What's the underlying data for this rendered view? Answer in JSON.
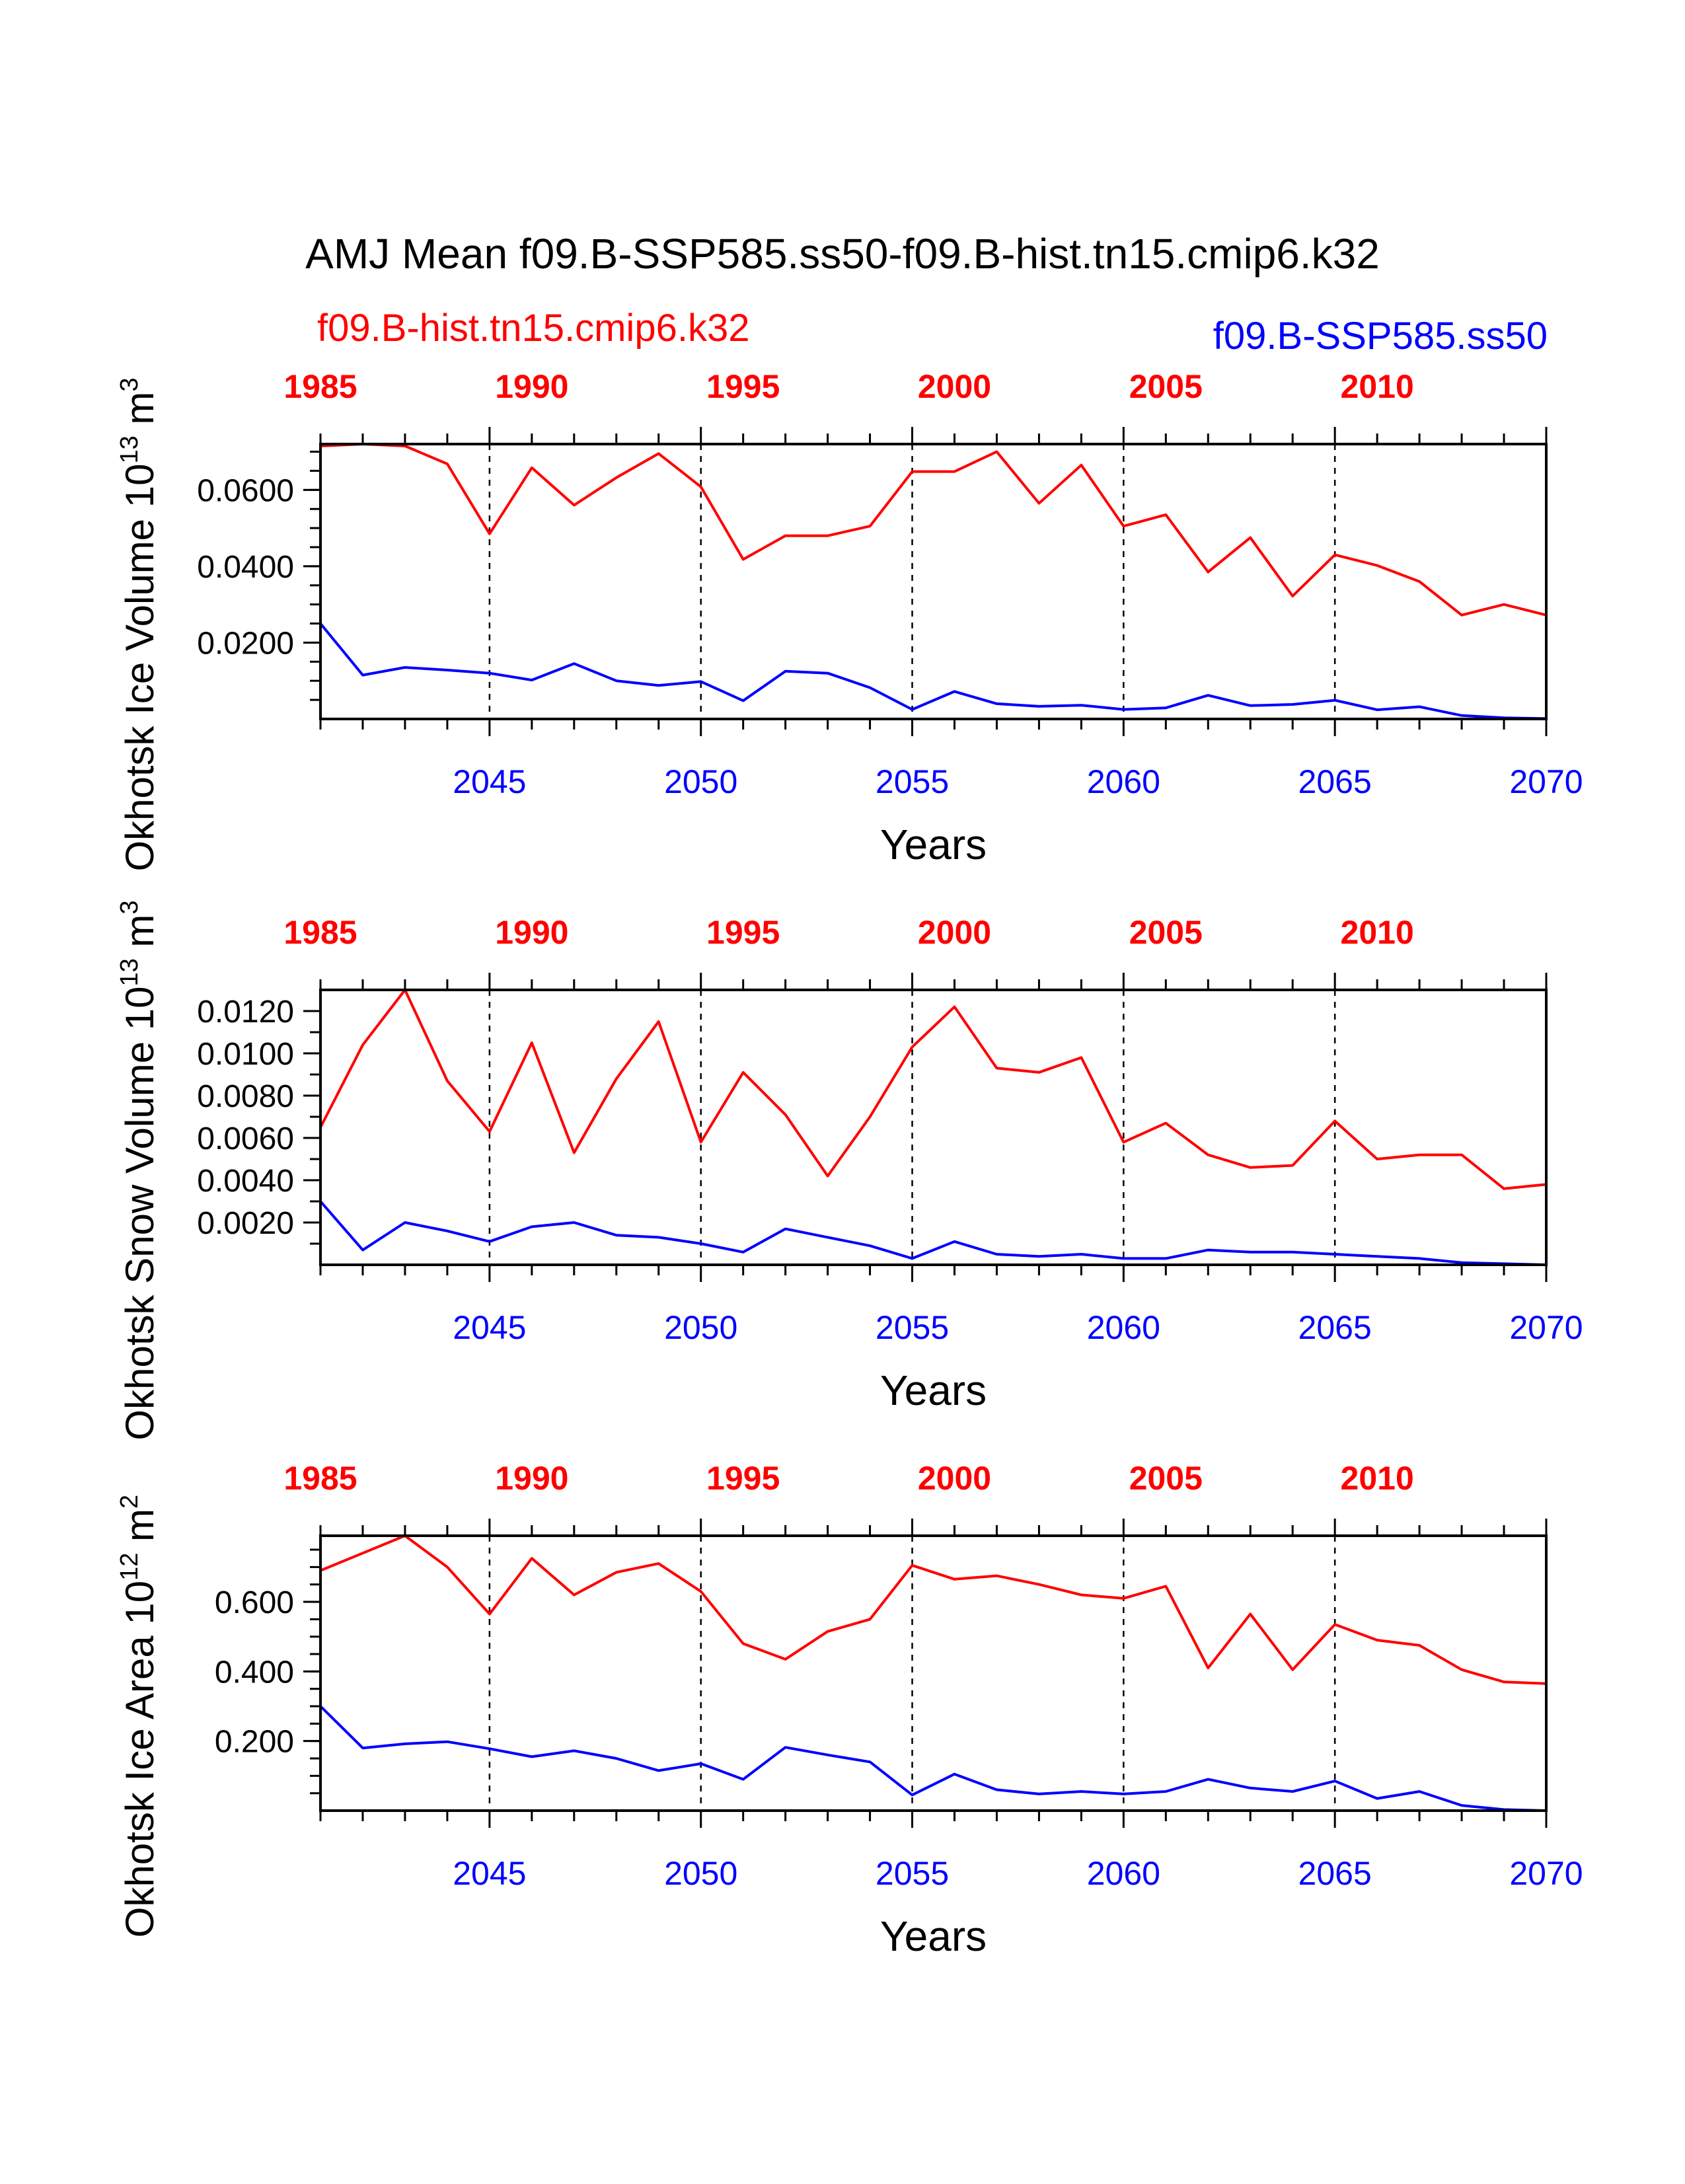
{
  "figure": {
    "title": "AMJ Mean f09.B-SSP585.ss50-f09.B-hist.tn15.cmip6.k32",
    "legend_left": "f09.B-hist.tn15.cmip6.k32",
    "legend_right": "f09.B-SSP585.ss50"
  },
  "colors": {
    "hist": "#ff0000",
    "ssp": "#0000ff",
    "axis": "#000000"
  },
  "chart_data": [
    {
      "type": "line",
      "ylabel_main": "Okhotsk Ice Volume 10",
      "ylabel_exp": "13",
      "ylabel_unit": " m",
      "ylabel_unit_exp": "3",
      "xlabel": "Years",
      "ylim": [
        0,
        0.072
      ],
      "yticks": [
        0.02,
        0.04,
        0.06
      ],
      "ytick_labels": [
        "0.0200",
        "0.0400",
        "0.0600"
      ],
      "yminor_step": 0.005,
      "bottom_ticks": [
        2045,
        2050,
        2055,
        2060,
        2065,
        2070
      ],
      "bottom_tick_labels": [
        "2045",
        "2050",
        "2055",
        "2060",
        "2065",
        "2070"
      ],
      "top_tick_labels": [
        "1985",
        "1990",
        "1995",
        "2000",
        "2005",
        "2010"
      ],
      "xlim": [
        2041,
        2070
      ],
      "series": [
        {
          "key": "hist",
          "x": [
            2041,
            2042,
            2043,
            2044,
            2045,
            2046,
            2047,
            2048,
            2049,
            2050,
            2051,
            2052,
            2053,
            2054,
            2055,
            2056,
            2057,
            2058,
            2059,
            2060,
            2061,
            2062,
            2063,
            2064,
            2065,
            2066,
            2067,
            2068,
            2069,
            2070
          ],
          "y": [
            0.0715,
            0.072,
            0.0715,
            0.0668,
            0.0485,
            0.0658,
            0.056,
            0.0632,
            0.0695,
            0.0608,
            0.0418,
            0.048,
            0.048,
            0.0505,
            0.0648,
            0.0648,
            0.07,
            0.0565,
            0.0665,
            0.0505,
            0.0535,
            0.0385,
            0.0475,
            0.0322,
            0.043,
            0.0402,
            0.036,
            0.0272,
            0.03,
            0.0272
          ]
        },
        {
          "key": "ssp",
          "x": [
            2041,
            2042,
            2043,
            2044,
            2045,
            2046,
            2047,
            2048,
            2049,
            2050,
            2051,
            2052,
            2053,
            2054,
            2055,
            2056,
            2057,
            2058,
            2059,
            2060,
            2061,
            2062,
            2063,
            2064,
            2065,
            2066,
            2067,
            2068,
            2069,
            2070
          ],
          "y": [
            0.025,
            0.0115,
            0.0135,
            0.0128,
            0.012,
            0.0102,
            0.0145,
            0.01,
            0.0088,
            0.0098,
            0.0048,
            0.0125,
            0.012,
            0.0082,
            0.0025,
            0.0072,
            0.004,
            0.0033,
            0.0036,
            0.0025,
            0.0029,
            0.0062,
            0.0035,
            0.0038,
            0.0049,
            0.0024,
            0.0032,
            0.0009,
            0.0003,
            0.0001
          ]
        }
      ]
    },
    {
      "type": "line",
      "ylabel_main": "Okhotsk Snow Volume 10",
      "ylabel_exp": "13",
      "ylabel_unit": " m",
      "ylabel_unit_exp": "3",
      "xlabel": "Years",
      "ylim": [
        0,
        0.013
      ],
      "yticks": [
        0.002,
        0.004,
        0.006,
        0.008,
        0.01,
        0.012
      ],
      "ytick_labels": [
        "0.0020",
        "0.0040",
        "0.0060",
        "0.0080",
        "0.0100",
        "0.0120"
      ],
      "yminor_step": 0.001,
      "bottom_ticks": [
        2045,
        2050,
        2055,
        2060,
        2065,
        2070
      ],
      "bottom_tick_labels": [
        "2045",
        "2050",
        "2055",
        "2060",
        "2065",
        "2070"
      ],
      "top_tick_labels": [
        "1985",
        "1990",
        "1995",
        "2000",
        "2005",
        "2010"
      ],
      "xlim": [
        2041,
        2070
      ],
      "series": [
        {
          "key": "hist",
          "x": [
            2041,
            2042,
            2043,
            2044,
            2045,
            2046,
            2047,
            2048,
            2049,
            2050,
            2051,
            2052,
            2053,
            2054,
            2055,
            2056,
            2057,
            2058,
            2059,
            2060,
            2061,
            2062,
            2063,
            2064,
            2065,
            2066,
            2067,
            2068,
            2069,
            2070
          ],
          "y": [
            0.0065,
            0.0104,
            0.013,
            0.0087,
            0.0063,
            0.0105,
            0.0053,
            0.0088,
            0.0115,
            0.0058,
            0.0091,
            0.0071,
            0.0042,
            0.007,
            0.0103,
            0.0122,
            0.0093,
            0.0091,
            0.0098,
            0.0058,
            0.0067,
            0.0052,
            0.0046,
            0.0047,
            0.0068,
            0.005,
            0.0052,
            0.0052,
            0.0036,
            0.0038
          ]
        },
        {
          "key": "ssp",
          "x": [
            2041,
            2042,
            2043,
            2044,
            2045,
            2046,
            2047,
            2048,
            2049,
            2050,
            2051,
            2052,
            2053,
            2054,
            2055,
            2056,
            2057,
            2058,
            2059,
            2060,
            2061,
            2062,
            2063,
            2064,
            2065,
            2066,
            2067,
            2068,
            2069,
            2070
          ],
          "y": [
            0.003,
            0.0007,
            0.002,
            0.0016,
            0.0011,
            0.0018,
            0.002,
            0.0014,
            0.0013,
            0.001,
            0.0006,
            0.0017,
            0.0013,
            0.0009,
            0.0003,
            0.0011,
            0.0005,
            0.0004,
            0.0005,
            0.0003,
            0.0003,
            0.0007,
            0.0006,
            0.0006,
            0.0005,
            0.0004,
            0.0003,
            0.0001,
            5e-05,
            0.0
          ]
        }
      ]
    },
    {
      "type": "line",
      "ylabel_main": "Okhotsk Ice Area 10",
      "ylabel_exp": "12",
      "ylabel_unit": " m",
      "ylabel_unit_exp": "2",
      "xlabel": "Years",
      "ylim": [
        0,
        0.79
      ],
      "yticks": [
        0.2,
        0.4,
        0.6
      ],
      "ytick_labels": [
        "0.200",
        "0.400",
        "0.600"
      ],
      "yminor_step": 0.05,
      "bottom_ticks": [
        2045,
        2050,
        2055,
        2060,
        2065,
        2070
      ],
      "bottom_tick_labels": [
        "2045",
        "2050",
        "2055",
        "2060",
        "2065",
        "2070"
      ],
      "top_tick_labels": [
        "1985",
        "1990",
        "1995",
        "2000",
        "2005",
        "2010"
      ],
      "xlim": [
        2041,
        2070
      ],
      "series": [
        {
          "key": "hist",
          "x": [
            2041,
            2042,
            2043,
            2044,
            2045,
            2046,
            2047,
            2048,
            2049,
            2050,
            2051,
            2052,
            2053,
            2054,
            2055,
            2056,
            2057,
            2058,
            2059,
            2060,
            2061,
            2062,
            2063,
            2064,
            2065,
            2066,
            2067,
            2068,
            2069,
            2070
          ],
          "y": [
            0.69,
            0.74,
            0.79,
            0.7,
            0.565,
            0.725,
            0.62,
            0.685,
            0.71,
            0.63,
            0.48,
            0.435,
            0.515,
            0.55,
            0.705,
            0.665,
            0.675,
            0.65,
            0.62,
            0.61,
            0.645,
            0.41,
            0.565,
            0.405,
            0.535,
            0.49,
            0.475,
            0.405,
            0.37,
            0.365
          ]
        },
        {
          "key": "ssp",
          "x": [
            2041,
            2042,
            2043,
            2044,
            2045,
            2046,
            2047,
            2048,
            2049,
            2050,
            2051,
            2052,
            2053,
            2054,
            2055,
            2056,
            2057,
            2058,
            2059,
            2060,
            2061,
            2062,
            2063,
            2064,
            2065,
            2066,
            2067,
            2068,
            2069,
            2070
          ],
          "y": [
            0.3,
            0.18,
            0.192,
            0.198,
            0.178,
            0.155,
            0.172,
            0.15,
            0.115,
            0.135,
            0.09,
            0.182,
            0.16,
            0.14,
            0.045,
            0.105,
            0.06,
            0.048,
            0.055,
            0.048,
            0.055,
            0.09,
            0.065,
            0.055,
            0.085,
            0.035,
            0.055,
            0.015,
            0.003,
            0.0
          ]
        }
      ]
    }
  ]
}
